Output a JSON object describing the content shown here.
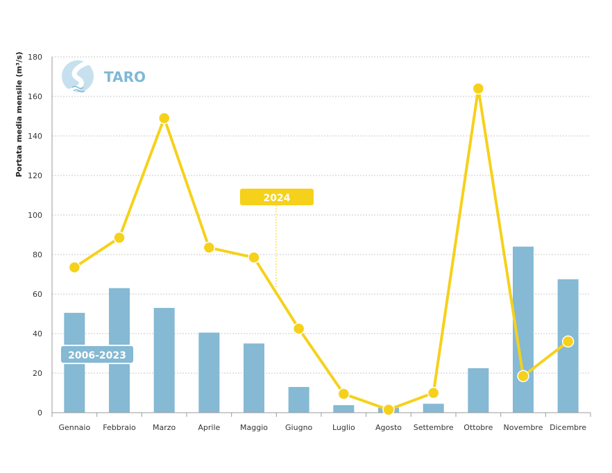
{
  "logo": {
    "text": "TARO",
    "icon": "river-icon"
  },
  "chart_data": {
    "type": "bar",
    "ylabel": "Portata media mensile (m³/s)",
    "xlabel": "",
    "ylim": [
      0,
      180
    ],
    "yticks": [
      0,
      20,
      40,
      60,
      80,
      100,
      120,
      140,
      160,
      180
    ],
    "grid": true,
    "categories": [
      "Gennaio",
      "Febbraio",
      "Marzo",
      "Aprile",
      "Maggio",
      "Giugno",
      "Luglio",
      "Agosto",
      "Settembre",
      "Ottobre",
      "Novembre",
      "Dicembre"
    ],
    "series": [
      {
        "name": "2006-2023",
        "type": "bar",
        "color": "#85b9d4",
        "values": [
          50.5,
          63,
          53,
          40.5,
          35,
          13,
          3.8,
          2.5,
          4.5,
          22.5,
          84,
          67.5
        ]
      },
      {
        "name": "2024",
        "type": "line",
        "color": "#f6d11b",
        "values": [
          73.5,
          88.5,
          149,
          83.5,
          78.5,
          42.5,
          9.5,
          1.5,
          10,
          164,
          18.5,
          36
        ]
      }
    ]
  },
  "colors": {
    "bar": "#85b9d4",
    "line": "#f6d11b",
    "grid": "#c8c8c8",
    "badge_bar": "#85b9d4",
    "badge_line": "#f6d11b"
  }
}
